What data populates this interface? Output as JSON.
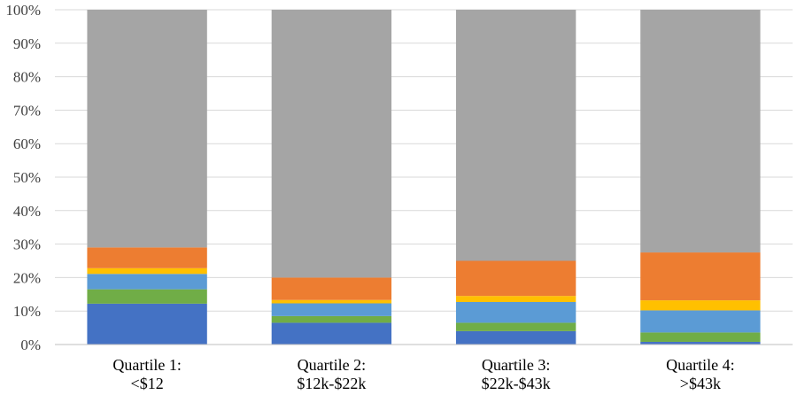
{
  "chart_data": {
    "type": "bar",
    "stacked": true,
    "percent": true,
    "title": "",
    "xlabel": "",
    "ylabel": "",
    "ylim": [
      0,
      100
    ],
    "y_ticks": [
      "0%",
      "10%",
      "20%",
      "30%",
      "40%",
      "50%",
      "60%",
      "70%",
      "80%",
      "90%",
      "100%"
    ],
    "categories": [
      [
        "Quartile 1:",
        "<$12"
      ],
      [
        "Quartile 2:",
        "$12k-$22k"
      ],
      [
        "Quartile 3:",
        "$22k-$43k"
      ],
      [
        "Quartile 4:",
        ">$43k"
      ]
    ],
    "grid": true,
    "legend": "none",
    "series": [
      {
        "color": "#4472c4",
        "values": [
          12.2,
          6.5,
          4.0,
          0.8
        ]
      },
      {
        "color": "#70ad47",
        "values": [
          4.3,
          2.0,
          2.5,
          2.8
        ]
      },
      {
        "color": "#5b9bd5",
        "values": [
          4.6,
          3.8,
          6.2,
          6.6
        ]
      },
      {
        "color": "#ffc000",
        "values": [
          1.7,
          1.0,
          1.8,
          3.0
        ]
      },
      {
        "color": "#ed7d31",
        "values": [
          6.2,
          6.7,
          10.5,
          14.3
        ]
      },
      {
        "color": "#a5a5a5",
        "values": [
          71.0,
          80.0,
          75.0,
          72.5
        ]
      }
    ]
  }
}
